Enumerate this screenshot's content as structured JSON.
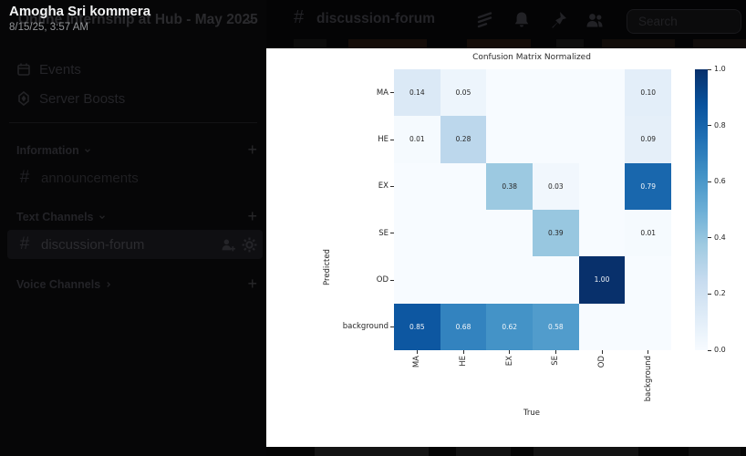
{
  "lightbox": {
    "username": "Amogha Sri kommera",
    "timestamp": "8/15/25, 3:57 AM"
  },
  "server": {
    "name": "Online Internship at Hub - May 2025"
  },
  "sidebar": {
    "events_label": "Events",
    "boosts_label": "Server Boosts",
    "sections": [
      {
        "label": "Information"
      },
      {
        "label": "Text Channels"
      },
      {
        "label": "Voice Channels"
      }
    ],
    "channels": [
      {
        "label": "announcements"
      },
      {
        "label": "discussion-forum"
      }
    ],
    "hash_glyph": "#",
    "plus_glyph": "+"
  },
  "topbar": {
    "hash_glyph": "#",
    "channel_name": "discussion-forum",
    "search_placeholder": "Search"
  },
  "chart_data": {
    "type": "heatmap",
    "title": "Confusion Matrix Normalized",
    "xlabel": "True",
    "ylabel": "Predicted",
    "x_labels": [
      "MA",
      "HE",
      "EX",
      "SE",
      "OD",
      "background"
    ],
    "y_labels": [
      "MA",
      "HE",
      "EX",
      "SE",
      "OD",
      "background"
    ],
    "matrix": [
      [
        0.14,
        0.05,
        null,
        null,
        null,
        0.1
      ],
      [
        0.01,
        0.28,
        null,
        null,
        null,
        0.09
      ],
      [
        null,
        null,
        0.38,
        0.03,
        null,
        0.79
      ],
      [
        null,
        null,
        null,
        0.39,
        null,
        0.01
      ],
      [
        null,
        null,
        null,
        null,
        1.0,
        null
      ],
      [
        0.85,
        0.68,
        0.62,
        0.58,
        null,
        null
      ]
    ],
    "vmin": 0.0,
    "vmax": 1.0,
    "colorbar_ticks": [
      0.0,
      0.2,
      0.4,
      0.6,
      0.8,
      1.0
    ],
    "colormap": "Blues",
    "colormap_stops": [
      [
        247,
        251,
        255
      ],
      [
        222,
        235,
        247
      ],
      [
        198,
        219,
        239
      ],
      [
        158,
        202,
        225
      ],
      [
        107,
        174,
        214
      ],
      [
        66,
        146,
        198
      ],
      [
        33,
        113,
        181
      ],
      [
        8,
        81,
        156
      ],
      [
        8,
        48,
        107
      ]
    ],
    "empty_color": "#f7fbff",
    "annot_dark": "#262626",
    "annot_light": "#f2f6fa",
    "legend_position": "right",
    "grid": false
  }
}
